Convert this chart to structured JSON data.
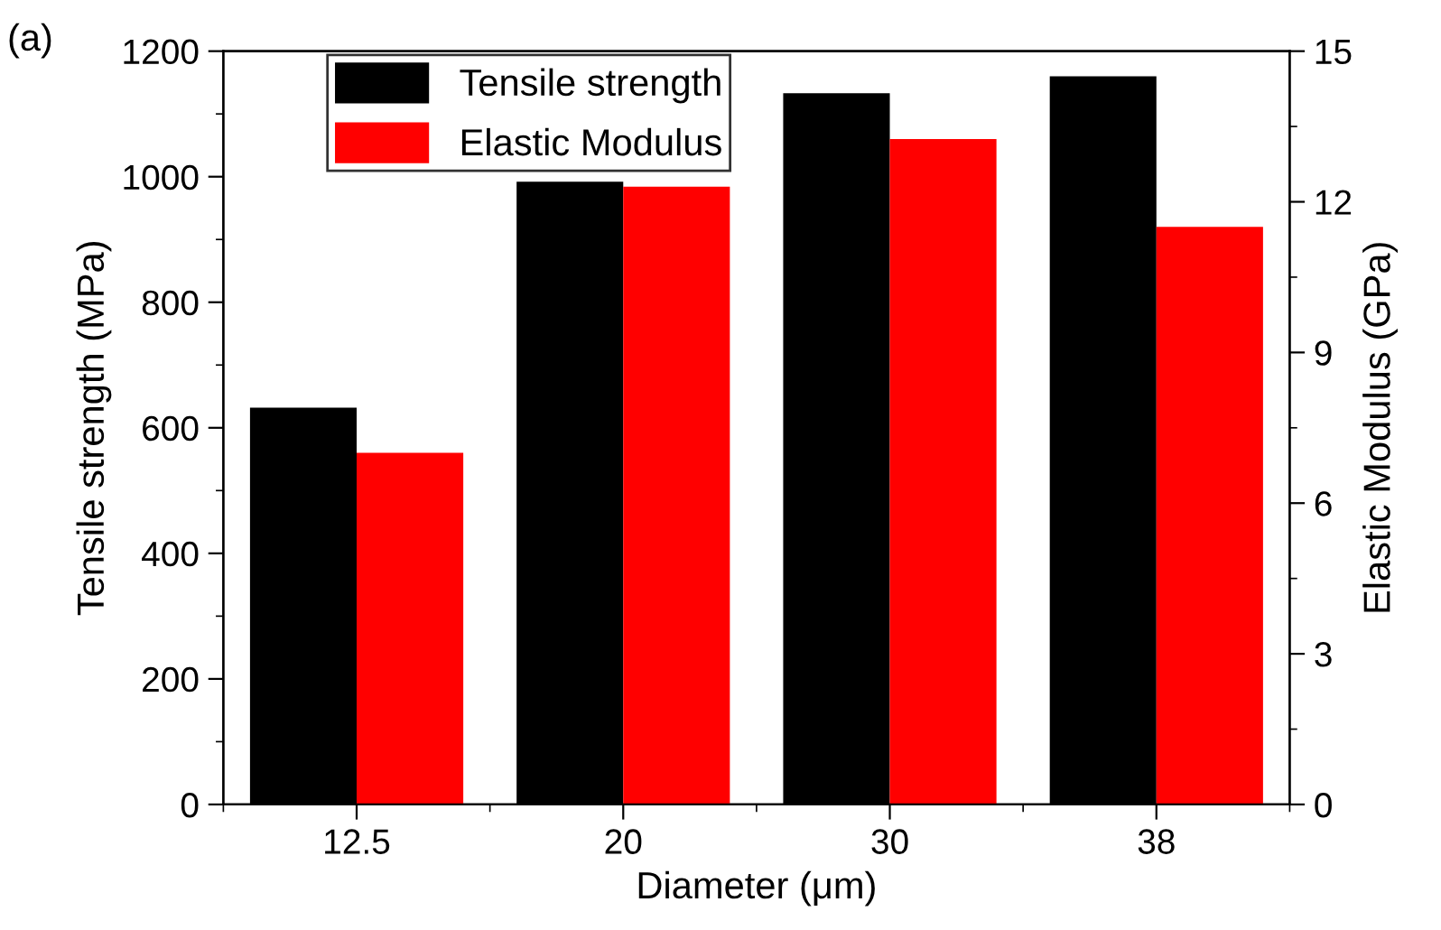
{
  "chart_data": {
    "type": "bar",
    "xlabel": "Diameter (μm)",
    "ylabel": "Tensile strength (MPa)",
    "y2label": "Elastic Modulus (GPa)",
    "annotations": [
      "(a)"
    ],
    "categories": [
      "12.5",
      "20",
      "30",
      "38"
    ],
    "series": [
      {
        "name": "Tensile strength",
        "color": "#000000",
        "values": [
          632,
          992,
          1133,
          1160
        ]
      },
      {
        "name": "Elastic Modulus",
        "color": "#ff0000",
        "axis": "y2",
        "values": [
          7.0,
          12.3,
          13.25,
          11.5
        ]
      }
    ],
    "ylim": [
      0,
      1200
    ],
    "yticks": [
      0,
      200,
      400,
      600,
      800,
      1000,
      1200
    ],
    "y2lim": [
      0,
      15
    ],
    "y2ticks": [
      0,
      3,
      6,
      9,
      12,
      15
    ],
    "grid": false,
    "legend": "top left"
  }
}
